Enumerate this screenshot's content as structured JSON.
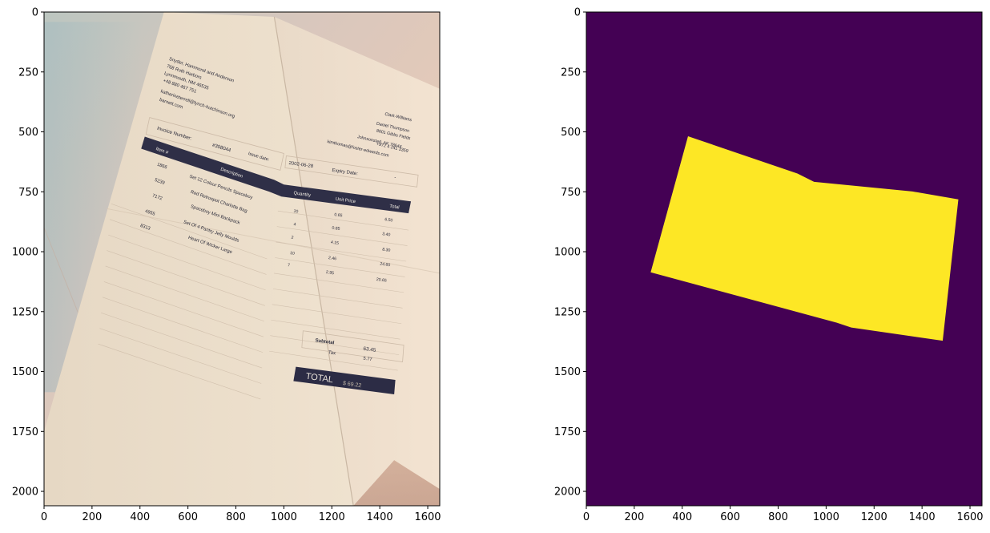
{
  "chart_data": [
    {
      "type": "image",
      "image_width": 1650,
      "image_height": 2060,
      "xlim": [
        0,
        1650
      ],
      "ylim": [
        2060,
        0
      ],
      "x_ticks": [
        0,
        200,
        400,
        600,
        800,
        1000,
        1200,
        1400,
        1600
      ],
      "y_ticks": [
        0,
        250,
        500,
        750,
        1000,
        1250,
        1500,
        1750,
        2000
      ],
      "photo_content": {
        "sender": {
          "name": "Snyder, Hammond and Anderson",
          "street": "768 Ruth Harbors",
          "city": "Lynnmouth, NM 46535",
          "phone": "+48 880 467 751",
          "email": "katherineterrell@lynch-hutchinson.org",
          "web": "barnett.com"
        },
        "recipient": {
          "company": "Clark-Williams",
          "name": "Daniel Thompson",
          "street": "8601 Gibbs Fields",
          "city": "Johnsonstad, AK 78644",
          "phone": "+972 4 241 3359",
          "email": "kimthomas@foster-edwards.com"
        },
        "invoice_number_label": "Invoice Number:",
        "invoice_number": "#308044",
        "issue_date_label": "Issue date:",
        "issue_date": "2002-06-28",
        "expiry_date_label": "Expiry Date:",
        "expiry_date": "-",
        "table_headers": [
          "Item #",
          "Description",
          "Quantity",
          "Unit Price",
          "Total"
        ],
        "items": [
          {
            "item": "1866",
            "description": "Set 12 Colour Pencils Spaceboy",
            "quantity": "10",
            "unit_price": "0.65",
            "total": "6.50"
          },
          {
            "item": "5239",
            "description": "Red Retrospot Charlotte Bag",
            "quantity": "4",
            "unit_price": "0.85",
            "total": "3.40"
          },
          {
            "item": "7172",
            "description": "Spaceboy Mini Backpack",
            "quantity": "2",
            "unit_price": "4.15",
            "total": "8.30"
          },
          {
            "item": "4955",
            "description": "Set Of 4 Pantry Jelly Moulds",
            "quantity": "10",
            "unit_price": "2.46",
            "total": "24.60"
          },
          {
            "item": "8313",
            "description": "Heart Of Wicker Large",
            "quantity": "7",
            "unit_price": "2.95",
            "total": "20.65"
          }
        ],
        "subtotal_label": "Subtotal",
        "subtotal": "63.45",
        "tax_label": "Tax",
        "tax": "5.77",
        "total_label": "TOTAL",
        "total": "$ 69.22"
      }
    },
    {
      "type": "heatmap",
      "description_type": "segmentation_mask",
      "image_width": 1650,
      "image_height": 2060,
      "xlim": [
        0,
        1650
      ],
      "ylim": [
        2060,
        0
      ],
      "x_ticks": [
        0,
        200,
        400,
        600,
        800,
        1000,
        1200,
        1400,
        1600
      ],
      "y_ticks": [
        0,
        250,
        500,
        750,
        1000,
        1250,
        1500,
        1750,
        2000
      ],
      "background_color": "#440154",
      "foreground_color": "#fde725",
      "mask_polygon": [
        [
          425,
          520
        ],
        [
          880,
          675
        ],
        [
          950,
          710
        ],
        [
          1360,
          750
        ],
        [
          1550,
          783
        ],
        [
          1485,
          1370
        ],
        [
          1105,
          1315
        ],
        [
          1045,
          1295
        ],
        [
          270,
          1085
        ]
      ]
    }
  ]
}
